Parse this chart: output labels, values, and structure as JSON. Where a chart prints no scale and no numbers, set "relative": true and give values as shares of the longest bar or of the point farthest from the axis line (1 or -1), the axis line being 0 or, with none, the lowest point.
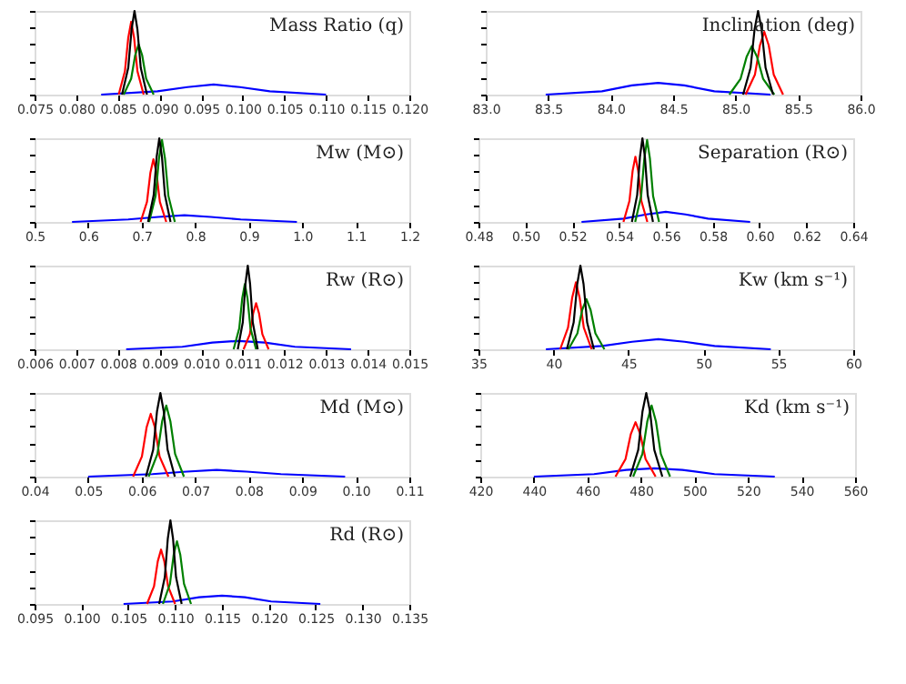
{
  "chart_data": [
    {
      "type": "line",
      "title": "Mass Ratio (q)",
      "relative": true,
      "tick_labels": "x",
      "grid": false,
      "legend": false,
      "marker": "none",
      "line_style": "solid",
      "xlim": [
        0.075,
        0.12
      ],
      "xticks": [
        0.075,
        {
          "value": 0.08,
          "label": "0.080"
        },
        0.085,
        {
          "value": 0.09,
          "label": "0.090"
        },
        0.095,
        {
          "value": 0.1,
          "label": "0.100"
        },
        0.105,
        {
          "value": 0.11,
          "label": "0.110"
        },
        0.115,
        {
          "value": 0.12,
          "label": "0.120"
        }
      ],
      "series": [
        {
          "color": "#0000ff",
          "x": [
            0.083,
            0.08975,
            0.09335,
            0.0965,
            0.09965,
            0.10325,
            0.11
          ],
          "values": [
            0,
            0.04,
            0.09,
            0.12,
            0.09,
            0.04,
            0
          ]
        },
        {
          "color": "#ff0000",
          "x": [
            0.0851,
            0.08585,
            0.08625,
            0.0866,
            0.08695,
            0.08735,
            0.0881
          ],
          "values": [
            0,
            0.28,
            0.68,
            0.87,
            0.68,
            0.28,
            0
          ]
        },
        {
          "color": "#008000",
          "x": [
            0.0857,
            0.0866,
            0.08708,
            0.0875,
            0.08792,
            0.0884,
            0.0893
          ],
          "values": [
            0,
            0.19,
            0.47,
            0.6,
            0.47,
            0.19,
            0
          ]
        },
        {
          "color": "#000000",
          "x": [
            0.0855,
            0.08625,
            0.08665,
            0.087,
            0.08735,
            0.08775,
            0.0885
          ],
          "values": [
            0,
            0.32,
            0.78,
            1,
            0.78,
            0.32,
            0
          ]
        }
      ]
    },
    {
      "type": "line",
      "title": "Inclination (deg)",
      "relative": true,
      "tick_labels": "x",
      "grid": false,
      "legend": false,
      "marker": "none",
      "line_style": "solid",
      "xlim": [
        83.0,
        86.0
      ],
      "xticks": [
        {
          "value": 83,
          "label": "83.0"
        },
        83.5,
        {
          "value": 84,
          "label": "84.0"
        },
        84.5,
        {
          "value": 85,
          "label": "85.0"
        },
        85.5,
        {
          "value": 86,
          "label": "86.0"
        }
      ],
      "series": [
        {
          "color": "#0000ff",
          "x": [
            83.48,
            83.93,
            84.17,
            84.38,
            84.59,
            84.83,
            85.28
          ],
          "values": [
            0,
            0.04,
            0.11,
            0.14,
            0.11,
            0.04,
            0
          ]
        },
        {
          "color": "#ff0000",
          "x": [
            85.08,
            85.155,
            85.195,
            85.23,
            85.265,
            85.305,
            85.38
          ],
          "values": [
            0,
            0.24,
            0.59,
            0.75,
            0.59,
            0.24,
            0
          ]
        },
        {
          "color": "#008000",
          "x": [
            84.95,
            85.04,
            85.088,
            85.13,
            85.172,
            85.22,
            85.31
          ],
          "values": [
            0,
            0.19,
            0.45,
            0.58,
            0.45,
            0.19,
            0
          ]
        },
        {
          "color": "#000000",
          "x": [
            85.06,
            85.12,
            85.152,
            85.18,
            85.208,
            85.24,
            85.3
          ],
          "values": [
            0,
            0.32,
            0.78,
            1,
            0.78,
            0.32,
            0
          ]
        }
      ]
    },
    {
      "type": "line",
      "title": "Mw (M⊙)",
      "relative": true,
      "tick_labels": "x",
      "grid": false,
      "legend": false,
      "marker": "none",
      "line_style": "solid",
      "xlim": [
        0.5,
        1.2
      ],
      "xticks": [
        0.5,
        0.6,
        0.7,
        0.8,
        0.9,
        {
          "value": 1,
          "label": "1.0"
        },
        1.1,
        1.2
      ],
      "series": [
        {
          "color": "#0000ff",
          "x": [
            0.57,
            0.675,
            0.731,
            0.78,
            0.829,
            0.885,
            0.99
          ],
          "values": [
            0,
            0.03,
            0.06,
            0.08,
            0.06,
            0.03,
            0
          ]
        },
        {
          "color": "#ff0000",
          "x": [
            0.698,
            0.71,
            0.7164,
            0.722,
            0.7276,
            0.734,
            0.746
          ],
          "values": [
            0,
            0.24,
            0.59,
            0.75,
            0.59,
            0.24,
            0
          ]
        },
        {
          "color": "#008000",
          "x": [
            0.714,
            0.726,
            0.7324,
            0.738,
            0.7436,
            0.75,
            0.762
          ],
          "values": [
            0,
            0.31,
            0.76,
            0.98,
            0.76,
            0.31,
            0
          ]
        },
        {
          "color": "#000000",
          "x": [
            0.712,
            0.7225,
            0.7281,
            0.733,
            0.7379,
            0.7435,
            0.754
          ],
          "values": [
            0,
            0.32,
            0.78,
            1,
            0.78,
            0.32,
            0
          ]
        }
      ]
    },
    {
      "type": "line",
      "title": "Separation (R⊙)",
      "relative": true,
      "tick_labels": "x",
      "grid": false,
      "legend": false,
      "marker": "none",
      "line_style": "solid",
      "xlim": [
        0.48,
        0.64
      ],
      "xticks": [
        0.48,
        {
          "value": 0.5,
          "label": "0.50"
        },
        0.52,
        0.54,
        0.56,
        0.58,
        {
          "value": 0.6,
          "label": "0.60"
        },
        0.62,
        0.64
      ],
      "series": [
        {
          "color": "#0000ff",
          "x": [
            0.524,
            0.542,
            0.5516,
            0.56,
            0.5684,
            0.578,
            0.596
          ],
          "values": [
            0,
            0.04,
            0.09,
            0.12,
            0.09,
            0.04,
            0
          ]
        },
        {
          "color": "#ff0000",
          "x": [
            0.5419,
            0.54445,
            0.54581,
            0.547,
            0.54819,
            0.54955,
            0.5521
          ],
          "values": [
            0,
            0.25,
            0.61,
            0.78,
            0.61,
            0.25,
            0
          ]
        },
        {
          "color": "#008000",
          "x": [
            0.5469,
            0.54945,
            0.55081,
            0.552,
            0.55319,
            0.55455,
            0.5571
          ],
          "values": [
            0,
            0.31,
            0.76,
            0.98,
            0.76,
            0.31,
            0
          ]
        },
        {
          "color": "#000000",
          "x": [
            0.5455,
            0.54775,
            0.54895,
            0.55,
            0.55105,
            0.55225,
            0.5545
          ],
          "values": [
            0,
            0.32,
            0.78,
            1,
            0.78,
            0.32,
            0
          ]
        }
      ]
    },
    {
      "type": "line",
      "title": "Rw (R⊙)",
      "relative": true,
      "tick_labels": "x",
      "grid": false,
      "legend": false,
      "marker": "none",
      "line_style": "solid",
      "xlim": [
        0.006,
        0.015
      ],
      "xticks": [
        0.006,
        0.007,
        0.008,
        0.009,
        {
          "value": 0.01,
          "label": "0.010"
        },
        0.011,
        0.012,
        0.013,
        0.014,
        0.015
      ],
      "series": [
        {
          "color": "#0000ff",
          "x": [
            0.0082,
            0.00955,
            0.01027,
            0.0109,
            0.01153,
            0.01225,
            0.0136
          ],
          "values": [
            0,
            0.03,
            0.08,
            0.1,
            0.08,
            0.03,
            0
          ]
        },
        {
          "color": "#ff0000",
          "x": [
            0.01102,
            0.01117,
            0.01125,
            0.01132,
            0.01139,
            0.01147,
            0.01162
          ],
          "values": [
            0,
            0.18,
            0.43,
            0.55,
            0.43,
            0.18,
            0
          ]
        },
        {
          "color": "#008000",
          "x": [
            0.01078,
            0.010915,
            0.010987,
            0.01105,
            0.011113,
            0.011185,
            0.01132
          ],
          "values": [
            0,
            0.25,
            0.61,
            0.78,
            0.61,
            0.25,
            0
          ]
        },
        {
          "color": "#000000",
          "x": [
            0.01088,
            0.011,
            0.011064,
            0.01112,
            0.011176,
            0.01124,
            0.01136
          ],
          "values": [
            0,
            0.32,
            0.78,
            1,
            0.78,
            0.32,
            0
          ]
        }
      ]
    },
    {
      "type": "line",
      "title": "Kw (km s⁻¹)",
      "relative": true,
      "tick_labels": "x",
      "grid": false,
      "legend": false,
      "marker": "none",
      "line_style": "solid",
      "xlim": [
        35,
        60
      ],
      "xticks": [
        35,
        40,
        45,
        50,
        55,
        60
      ],
      "series": [
        {
          "color": "#0000ff",
          "x": [
            39.5,
            43.25,
            45.25,
            47,
            48.75,
            50.75,
            54.5
          ],
          "values": [
            0,
            0.04,
            0.09,
            0.12,
            0.09,
            0.04,
            0
          ]
        },
        {
          "color": "#ff0000",
          "x": [
            40.45,
            40.975,
            41.255,
            41.5,
            41.745,
            42.025,
            42.55
          ],
          "values": [
            0,
            0.26,
            0.62,
            0.8,
            0.62,
            0.26,
            0
          ]
        },
        {
          "color": "#008000",
          "x": [
            41.0,
            41.6,
            41.92,
            42.2,
            42.48,
            42.8,
            43.4
          ],
          "values": [
            0,
            0.19,
            0.47,
            0.6,
            0.47,
            0.19,
            0
          ]
        },
        {
          "color": "#000000",
          "x": [
            40.9,
            41.35,
            41.59,
            41.8,
            42.01,
            42.25,
            42.7
          ],
          "values": [
            0,
            0.32,
            0.78,
            1,
            0.78,
            0.32,
            0
          ]
        }
      ]
    },
    {
      "type": "line",
      "title": "Md (M⊙)",
      "relative": true,
      "tick_labels": "x",
      "grid": false,
      "legend": false,
      "marker": "none",
      "line_style": "solid",
      "xlim": [
        0.04,
        0.11
      ],
      "xticks": [
        0.04,
        0.05,
        0.06,
        0.07,
        0.08,
        0.09,
        {
          "value": 0.1,
          "label": "0.10"
        },
        0.11
      ],
      "series": [
        {
          "color": "#0000ff",
          "x": [
            0.05,
            0.062,
            0.0684,
            0.074,
            0.0796,
            0.086,
            0.098
          ],
          "values": [
            0,
            0.03,
            0.06,
            0.08,
            0.06,
            0.03,
            0
          ]
        },
        {
          "color": "#ff0000",
          "x": [
            0.0584,
            0.06005,
            0.06093,
            0.0617,
            0.06247,
            0.06335,
            0.065
          ],
          "values": [
            0,
            0.24,
            0.59,
            0.75,
            0.59,
            0.24,
            0
          ]
        },
        {
          "color": "#008000",
          "x": [
            0.0613,
            0.06295,
            0.06383,
            0.0646,
            0.06537,
            0.06625,
            0.0679
          ],
          "values": [
            0,
            0.27,
            0.66,
            0.85,
            0.66,
            0.27,
            0
          ]
        },
        {
          "color": "#000000",
          "x": [
            0.0608,
            0.06215,
            0.06287,
            0.0635,
            0.06413,
            0.06485,
            0.0662
          ],
          "values": [
            0,
            0.32,
            0.78,
            1,
            0.78,
            0.32,
            0
          ]
        }
      ]
    },
    {
      "type": "line",
      "title": "Kd (km s⁻¹)",
      "relative": true,
      "tick_labels": "x",
      "grid": false,
      "legend": false,
      "marker": "none",
      "line_style": "solid",
      "xlim": [
        420,
        560
      ],
      "xticks": [
        420,
        440,
        460,
        480,
        500,
        520,
        540,
        560
      ],
      "series": [
        {
          "color": "#0000ff",
          "x": [
            440,
            462.5,
            474.5,
            485,
            495.5,
            507.5,
            530
          ],
          "values": [
            0,
            0.03,
            0.08,
            0.1,
            0.08,
            0.03,
            0
          ]
        },
        {
          "color": "#ff0000",
          "x": [
            470.5,
            474.25,
            476.25,
            478,
            479.75,
            481.75,
            485.5
          ],
          "values": [
            0,
            0.21,
            0.51,
            0.65,
            0.51,
            0.21,
            0
          ]
        },
        {
          "color": "#008000",
          "x": [
            477.1,
            480.55,
            482.39,
            484,
            485.61,
            487.45,
            490.9
          ],
          "values": [
            0,
            0.27,
            0.66,
            0.85,
            0.66,
            0.27,
            0
          ]
        },
        {
          "color": "#000000",
          "x": [
            476,
            479,
            480.6,
            482,
            483.4,
            485,
            488
          ],
          "values": [
            0,
            0.32,
            0.78,
            1,
            0.78,
            0.32,
            0
          ]
        }
      ]
    },
    {
      "type": "line",
      "title": "Rd (R⊙)",
      "relative": true,
      "tick_labels": "x",
      "grid": false,
      "legend": false,
      "marker": "none",
      "line_style": "solid",
      "xlim": [
        0.095,
        0.135
      ],
      "xticks": [
        0.095,
        {
          "value": 0.1,
          "label": "0.100"
        },
        0.105,
        {
          "value": 0.11,
          "label": "0.110"
        },
        0.115,
        {
          "value": 0.12,
          "label": "0.120"
        },
        0.125,
        {
          "value": 0.13,
          "label": "0.130"
        },
        0.135
      ],
      "series": [
        {
          "color": "#0000ff",
          "x": [
            0.1045,
            0.10975,
            0.11255,
            0.115,
            0.11745,
            0.12025,
            0.1255
          ],
          "values": [
            0,
            0.03,
            0.08,
            0.1,
            0.08,
            0.03,
            0
          ]
        },
        {
          "color": "#ff0000",
          "x": [
            0.107,
            0.10775,
            0.10815,
            0.1085,
            0.10885,
            0.10925,
            0.11
          ],
          "values": [
            0,
            0.21,
            0.51,
            0.65,
            0.51,
            0.21,
            0
          ]
        },
        {
          "color": "#008000",
          "x": [
            0.1087,
            0.10945,
            0.10985,
            0.1102,
            0.11055,
            0.11095,
            0.1117
          ],
          "values": [
            0,
            0.24,
            0.59,
            0.75,
            0.59,
            0.24,
            0
          ]
        },
        {
          "color": "#000000",
          "x": [
            0.1083,
            0.1089,
            0.10922,
            0.1095,
            0.10978,
            0.1101,
            0.1107
          ],
          "values": [
            0,
            0.32,
            0.78,
            1,
            0.78,
            0.32,
            0
          ]
        }
      ]
    }
  ]
}
